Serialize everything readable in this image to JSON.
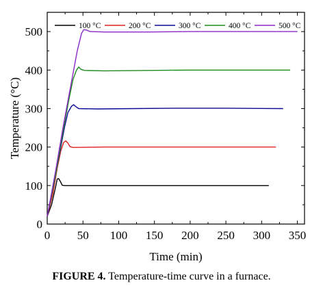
{
  "chart_data": {
    "type": "line",
    "xlabel": "Time (min)",
    "ylabel": "Temperature (°C)",
    "xlim": [
      0,
      360
    ],
    "ylim": [
      0,
      550
    ],
    "xticks": [
      "0",
      "50",
      "100",
      "150",
      "200",
      "250",
      "300",
      "350"
    ],
    "yticks": [
      "0",
      "100",
      "200",
      "300",
      "400",
      "500"
    ],
    "legend_position": "top",
    "series": [
      {
        "name": "100 °C",
        "color": "#000000",
        "points": [
          [
            0,
            20
          ],
          [
            6,
            50
          ],
          [
            11,
            90
          ],
          [
            14,
            117
          ],
          [
            16,
            118
          ],
          [
            18,
            112
          ],
          [
            21,
            101
          ],
          [
            24,
            100
          ],
          [
            60,
            100
          ],
          [
            120,
            100
          ],
          [
            180,
            100
          ],
          [
            240,
            100
          ],
          [
            310,
            100
          ]
        ]
      },
      {
        "name": "200 °C",
        "color": "#e02020",
        "points": [
          [
            0,
            20
          ],
          [
            8,
            80
          ],
          [
            14,
            145
          ],
          [
            19,
            190
          ],
          [
            23,
            212
          ],
          [
            26,
            216
          ],
          [
            29,
            210
          ],
          [
            32,
            201
          ],
          [
            36,
            199
          ],
          [
            80,
            200
          ],
          [
            150,
            200
          ],
          [
            200,
            200
          ],
          [
            260,
            200
          ],
          [
            320,
            200
          ]
        ]
      },
      {
        "name": "300 °C",
        "color": "#0b0b95",
        "points": [
          [
            0,
            20
          ],
          [
            10,
            110
          ],
          [
            18,
            190
          ],
          [
            24,
            250
          ],
          [
            29,
            290
          ],
          [
            34,
            306
          ],
          [
            37,
            310
          ],
          [
            40,
            305
          ],
          [
            44,
            300
          ],
          [
            70,
            299
          ],
          [
            120,
            300
          ],
          [
            180,
            301
          ],
          [
            250,
            301
          ],
          [
            330,
            300
          ]
        ]
      },
      {
        "name": "400 °C",
        "color": "#1e8c1e",
        "points": [
          [
            0,
            20
          ],
          [
            12,
            130
          ],
          [
            22,
            240
          ],
          [
            30,
            320
          ],
          [
            36,
            375
          ],
          [
            41,
            400
          ],
          [
            44,
            408
          ],
          [
            47,
            402
          ],
          [
            52,
            399
          ],
          [
            80,
            398
          ],
          [
            140,
            399
          ],
          [
            200,
            400
          ],
          [
            270,
            400
          ],
          [
            340,
            400
          ]
        ]
      },
      {
        "name": "500 °C",
        "color": "#8a28c8",
        "points": [
          [
            0,
            20
          ],
          [
            12,
            140
          ],
          [
            22,
            250
          ],
          [
            30,
            330
          ],
          [
            36,
            390
          ],
          [
            42,
            450
          ],
          [
            48,
            495
          ],
          [
            51,
            505
          ],
          [
            55,
            504
          ],
          [
            60,
            500
          ],
          [
            80,
            499
          ],
          [
            140,
            499
          ],
          [
            200,
            500
          ],
          [
            270,
            500
          ],
          [
            350,
            500
          ]
        ]
      }
    ]
  },
  "caption": {
    "label": "FIGURE 4.",
    "text": " Temperature-time curve in a furnace."
  }
}
